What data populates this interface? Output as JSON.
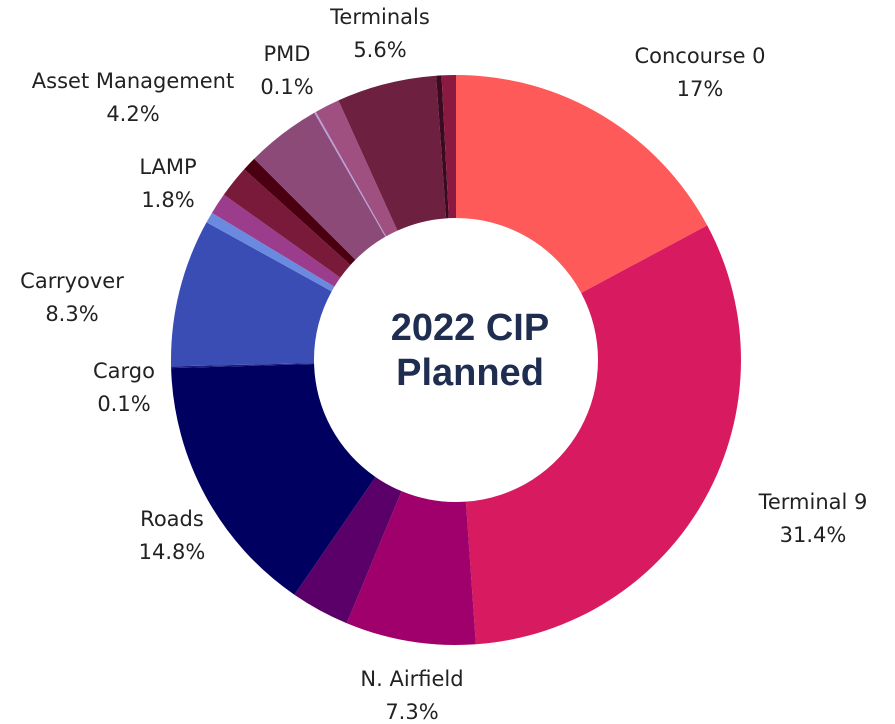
{
  "chart_data": {
    "type": "donut",
    "title": "2022 CIP Planned",
    "categories": [
      "Concourse 0",
      "Terminal 9",
      "N. Airfield",
      null,
      "Roads",
      "Cargo",
      "Carryover",
      null,
      null,
      "LAMP",
      null,
      "Asset Management",
      "PMD",
      null,
      "Terminals",
      null,
      null
    ],
    "values": [
      17,
      31.4,
      7.3,
      3.3,
      14.8,
      0.1,
      8.3,
      0.6,
      1.2,
      1.8,
      0.8,
      4.2,
      0.1,
      1.4,
      5.6,
      0.3,
      0.8
    ],
    "value_labels": [
      "17%",
      "31.4%",
      "7.3%",
      null,
      "14.8%",
      "0.1%",
      "8.3%",
      null,
      null,
      "1.8%",
      null,
      "4.2%",
      "0.1%",
      null,
      "5.6%",
      null,
      null
    ],
    "colors": [
      "#ff5a5a",
      "#d81b60",
      "#a0006b",
      "#5a0068",
      "#000060",
      "#1a1a80",
      "#3a4db5",
      "#6a8ae0",
      "#9c3c8c",
      "#7a1a3a",
      "#4a0010",
      "#8c4a78",
      "#b8a0d8",
      "#a05080",
      "#6e2040",
      "#3a0a20",
      "#8a1a40"
    ]
  }
}
